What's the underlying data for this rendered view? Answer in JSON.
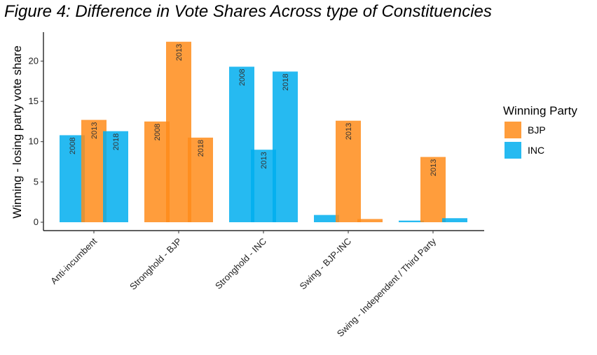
{
  "chart_data": {
    "type": "bar",
    "title": "Figure 4: Difference in Vote Shares Across type of Constituencies",
    "ylabel": "Winning - losing party vote share",
    "xlabel": "",
    "ylim": [
      -1,
      24
    ],
    "yticks": [
      0,
      5,
      10,
      15,
      20
    ],
    "grid": false,
    "legend": {
      "title": "Winning Party",
      "position": "right",
      "items": [
        {
          "name": "BJP",
          "color": "#FF8C1A"
        },
        {
          "name": "INC",
          "color": "#00AEEF"
        }
      ]
    },
    "years": [
      "2008",
      "2013",
      "2018"
    ],
    "categories": [
      "Anti-incumbent",
      "Stronghold - BJP",
      "Stronghold - INC",
      "Swing - BJP-INC",
      "Swing - Independent / Third Party"
    ],
    "groups": [
      {
        "category": "Anti-incumbent",
        "bars": [
          {
            "year": "2008",
            "party": "INC",
            "value": 10.8,
            "label": "2008"
          },
          {
            "year": "2013",
            "party": "BJP",
            "value": 12.7,
            "label": "2013"
          },
          {
            "year": "2018",
            "party": "INC",
            "value": 11.3,
            "label": "2018"
          }
        ]
      },
      {
        "category": "Stronghold - BJP",
        "bars": [
          {
            "year": "2008",
            "party": "BJP",
            "value": 12.5,
            "label": "2008"
          },
          {
            "year": "2013",
            "party": "BJP",
            "value": 22.4,
            "label": "2013"
          },
          {
            "year": "2018",
            "party": "BJP",
            "value": 10.5,
            "label": "2018"
          }
        ]
      },
      {
        "category": "Stronghold - INC",
        "bars": [
          {
            "year": "2008",
            "party": "INC",
            "value": 19.3,
            "label": "2008"
          },
          {
            "year": "2013",
            "party": "INC",
            "value": 9.0,
            "label": "2013"
          },
          {
            "year": "2018",
            "party": "INC",
            "value": 18.7,
            "label": "2018"
          }
        ]
      },
      {
        "category": "Swing - BJP-INC",
        "bars": [
          {
            "year": "2008",
            "party": "INC",
            "value": 0.9,
            "label": ""
          },
          {
            "year": "2013",
            "party": "BJP",
            "value": 12.6,
            "label": "2013"
          },
          {
            "year": "2018",
            "party": "BJP",
            "value": 0.4,
            "label": ""
          }
        ]
      },
      {
        "category": "Swing - Independent / Third Party",
        "bars": [
          {
            "year": "2008",
            "party": "INC",
            "value": 0.2,
            "label": ""
          },
          {
            "year": "2013",
            "party": "BJP",
            "value": 8.1,
            "label": "2013"
          },
          {
            "year": "2018",
            "party": "INC",
            "value": 0.5,
            "label": ""
          }
        ]
      }
    ]
  }
}
